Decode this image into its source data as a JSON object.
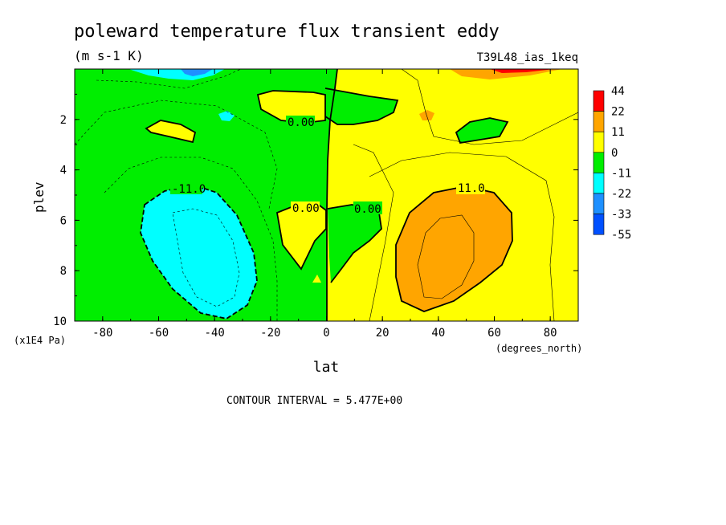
{
  "chart_data": {
    "type": "contour",
    "title": "poleward temperature flux transient eddy",
    "units": "(m s-1 K)",
    "dataset": "T39L48_ias_1keq",
    "xlabel": "lat",
    "xunits": "(degrees_north)",
    "ylabel": "plev",
    "yunits": "(x1E4 Pa)",
    "xlim": [
      -90,
      90
    ],
    "ylim": [
      10,
      0
    ],
    "x_ticks": [
      "-80",
      "-60",
      "-40",
      "-20",
      "0",
      "20",
      "40",
      "60",
      "80"
    ],
    "x_tick_values": [
      -80,
      -60,
      -40,
      -20,
      0,
      20,
      40,
      60,
      80
    ],
    "y_ticks": [
      "2",
      "4",
      "6",
      "8",
      "10"
    ],
    "y_tick_values": [
      2,
      4,
      6,
      8,
      10
    ],
    "contour_interval": "CONTOUR INTERVAL = 5.477E+00",
    "contour_labels": [
      "-11.0",
      "0.00",
      "0.00",
      "0.00",
      "11.0"
    ],
    "colorbar": {
      "levels": [
        "44",
        "22",
        "11",
        "0",
        "-11",
        "-22",
        "-33",
        "-55"
      ],
      "colors": [
        "#ff0000",
        "#ffa500",
        "#ffff00",
        "#00ee00",
        "#00ffff",
        "#1e90ff",
        "#0050ff"
      ]
    },
    "regions": [
      {
        "name": "southern negative (-11 to -22)",
        "value_range": [
          -22,
          -11
        ],
        "lat_range": [
          -65,
          -25
        ],
        "plev_range": [
          5.0,
          9.8
        ],
        "min_approx": -18
      },
      {
        "name": "northern positive (11 to 22)",
        "value_range": [
          11,
          22
        ],
        "lat_range": [
          25,
          65
        ],
        "plev_range": [
          4.8,
          9.6
        ],
        "max_approx": 20
      },
      {
        "name": "high-latitude south top negative",
        "value_range": [
          -22,
          -11
        ],
        "lat_range": [
          -70,
          -45
        ],
        "plev_range": [
          0,
          0.5
        ]
      },
      {
        "name": "high-latitude north top positive",
        "value_range": [
          11,
          44
        ],
        "lat_range": [
          45,
          80
        ],
        "plev_range": [
          0,
          0.3
        ]
      }
    ]
  },
  "colors": {
    "red": "#ff0000",
    "orange": "#ffa500",
    "yellow": "#ffff00",
    "green": "#00ee00",
    "cyan": "#00ffff",
    "blue": "#1e90ff",
    "darkblue": "#0050ff"
  }
}
